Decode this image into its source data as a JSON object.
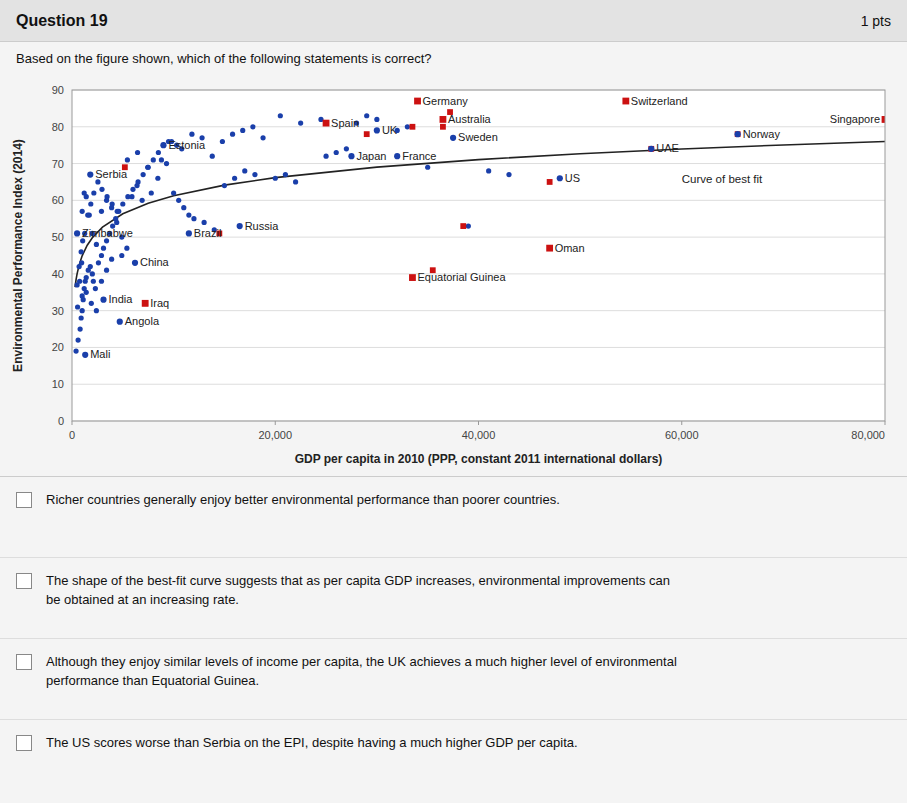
{
  "quiz": {
    "title": "Question 19",
    "pts": "1 pts",
    "question": "Based on the figure shown, which of the following statements is correct?",
    "choices": [
      "Richer countries generally enjoy better environmental performance than poorer countries.",
      "The shape of the best-fit curve suggests that as per capita GDP increases, environmental improvements can\nbe obtained at an increasing rate.",
      "Although they enjoy similar levels of income per capita, the UK achieves a much higher level of environmental\nperformance than Equatorial Guinea.",
      "The US scores worse than Serbia on the EPI, despite having a much higher GDP per capita."
    ]
  },
  "chart_data": {
    "type": "scatter",
    "xlabel": "GDP per capita in 2010 (PPP, constant 2011 international dollars)",
    "ylabel": "Environmental Performance Index (2014)",
    "xlim": [
      0,
      80000
    ],
    "ylim": [
      0,
      90
    ],
    "xticks": [
      0,
      {
        "value": 20000,
        "label": "20,000"
      },
      {
        "value": 40000,
        "label": "40,000"
      },
      {
        "value": 60000,
        "label": "60,000"
      },
      {
        "value": 80000,
        "label": "80,000"
      }
    ],
    "yticks": [
      0,
      10,
      20,
      30,
      40,
      50,
      60,
      70,
      80,
      90
    ],
    "grid": "y",
    "series": [
      {
        "type": "scatter",
        "color": "#1a3faa",
        "marker": "circle",
        "x": [
          400,
          600,
          800,
          900,
          1000,
          1100,
          1200,
          1300,
          1400,
          1600,
          1800,
          2000,
          2100,
          2300,
          2600,
          2900,
          3100,
          3400,
          3700,
          4000,
          4300,
          4600,
          5000,
          5500,
          6000,
          6500,
          7000,
          7500,
          8000,
          8500,
          9000,
          9500,
          10000,
          10500,
          11000,
          11500,
          12000,
          13000,
          14000,
          15000,
          16000,
          17000,
          18000,
          1000,
          1200,
          1400,
          1700,
          2000,
          2400,
          2900,
          3400,
          3900,
          4400,
          4900,
          5400,
          5900,
          6400,
          6900,
          7800,
          8800,
          9300,
          9800,
          10300,
          10800,
          11800,
          12800,
          13800,
          14800,
          15800,
          16800,
          17800,
          18800,
          20000,
          21000,
          22000,
          25000,
          26000,
          27000,
          28000,
          29000,
          30000,
          32000,
          33000,
          35000,
          39000,
          41000,
          43000,
          1000,
          1400,
          1900,
          2400,
          2900,
          3400,
          3900,
          4900,
          500,
          700,
          900,
          1050,
          550,
          750,
          950,
          1250,
          1550,
          1850,
          2150,
          2550,
          2950,
          3450,
          3950,
          4450,
          5450,
          6450,
          7450,
          8450,
          20500,
          22500,
          24500
        ],
        "values": [
          19,
          22,
          25,
          28,
          30,
          33,
          36,
          38,
          39,
          41,
          42,
          40,
          38,
          36,
          43,
          45,
          47,
          49,
          51,
          53,
          55,
          57,
          59,
          61,
          63,
          65,
          67,
          69,
          71,
          73,
          75,
          76,
          62,
          60,
          58,
          56,
          55,
          54,
          52,
          64,
          66,
          68,
          67,
          57,
          62,
          61,
          56,
          51,
          48,
          57,
          60,
          58,
          54,
          50,
          47,
          61,
          64,
          60,
          62,
          71,
          70,
          76,
          75,
          74,
          78,
          77,
          72,
          76,
          78,
          79,
          80,
          77,
          66,
          67,
          65,
          72,
          73,
          74,
          81,
          83,
          82,
          79,
          80,
          69,
          53,
          68,
          67,
          34,
          35,
          32,
          30,
          38,
          41,
          44,
          45,
          37,
          42,
          46,
          49,
          31,
          38,
          43,
          51,
          56,
          59,
          62,
          65,
          63,
          61,
          59,
          57,
          71,
          73,
          69,
          66,
          83,
          81,
          82
        ]
      },
      {
        "type": "scatter",
        "color": "#cc1111",
        "marker": "square",
        "x": [
          5200,
          7200,
          14500,
          33500,
          35500,
          36500,
          37200,
          54500,
          57000,
          80000,
          47000,
          65500,
          38500,
          25000,
          29000
        ],
        "values": [
          69,
          32,
          51,
          80,
          41,
          80,
          84,
          87,
          74,
          82,
          65,
          78,
          53,
          81,
          78
        ]
      },
      {
        "type": "scatter",
        "color": "#1a3faa",
        "marker": "circle",
        "labels": [
          "Zimbabwe",
          "Serbia",
          "Estonia",
          "Brazil",
          "China",
          "India",
          "Angola",
          "Mali",
          "Russia",
          "Japan",
          "UK",
          "Sweden",
          "France",
          "US",
          "UAE",
          "Norway"
        ],
        "x": [
          500,
          1800,
          9000,
          11500,
          6200,
          3100,
          4700,
          1300,
          16500,
          27500,
          30000,
          37500,
          32000,
          48000,
          57000,
          65500
        ],
        "values": [
          51,
          67,
          75,
          51,
          43,
          33,
          27,
          18,
          53,
          72,
          79,
          77,
          72,
          66,
          74,
          78
        ]
      },
      {
        "type": "scatter",
        "color": "#cc1111",
        "marker": "square",
        "labels": [
          "Germany",
          "Spain",
          "Australia",
          "Switzerland",
          "Singapore",
          "Iraq",
          "Oman",
          "Equatorial Guinea"
        ],
        "x": [
          34000,
          25000,
          36500,
          54500,
          80000,
          7200,
          47000,
          33500
        ],
        "values": [
          87,
          81,
          82,
          87,
          82,
          32,
          47,
          39
        ]
      },
      {
        "type": "line",
        "color": "#222222",
        "x": [
          300,
          400,
          500,
          700,
          1000,
          1500,
          2000,
          3000,
          5000,
          7500,
          10000,
          15000,
          20000,
          30000,
          40000,
          50000,
          60000,
          70000,
          80000
        ],
        "values": [
          36.38,
          38.42,
          40,
          42.39,
          44.92,
          47.79,
          49.83,
          52.71,
          56.33,
          59.21,
          61.25,
          64.13,
          66.17,
          69.04,
          71.08,
          72.67,
          73.96,
          75.05,
          76
        ]
      }
    ],
    "annotations": [
      {
        "text": "Curve of best fit"
      }
    ]
  }
}
